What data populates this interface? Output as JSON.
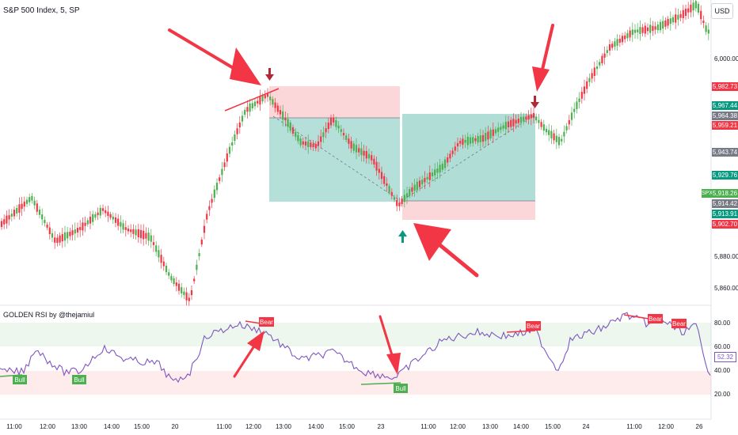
{
  "header": {
    "symbol": "S&P 500 Index, 5, SP",
    "currency_button": "USD"
  },
  "indicator": {
    "title": "GOLDEN RSI by @thejamiul"
  },
  "price_axis": {
    "labels": [
      "6,000.00",
      "5,880.00",
      "5,860.00"
    ],
    "tags": [
      {
        "text": "5,982.73",
        "color": "#f23645"
      },
      {
        "text": "5,967.44",
        "color": "#089981"
      },
      {
        "text": "5,964.38",
        "color": "#787b86"
      },
      {
        "text": "5,959.21",
        "color": "#f23645"
      },
      {
        "text": "5,943.74",
        "color": "#787b86"
      },
      {
        "text": "5,929.76",
        "color": "#089981"
      },
      {
        "text": "5,918.26",
        "color": "#4caf50"
      },
      {
        "text": "5,914.42",
        "color": "#787b86"
      },
      {
        "text": "5,913.91",
        "color": "#089981"
      },
      {
        "text": "5,902.70",
        "color": "#f23645"
      }
    ],
    "symbol_tag": "SPX"
  },
  "rsi_axis": {
    "labels": [
      "80.00",
      "60.00",
      "40.00",
      "20.00"
    ],
    "current": "52.32"
  },
  "time_axis": {
    "labels": [
      "11:00",
      "12:00",
      "13:00",
      "14:00",
      "15:00",
      "20",
      "11:00",
      "12:00",
      "13:00",
      "14:00",
      "15:00",
      "23",
      "11:00",
      "12:00",
      "13:00",
      "14:00",
      "15:00",
      "24",
      "11:00",
      "12:00",
      "26"
    ]
  },
  "signals": {
    "bull": [
      "Bull",
      "Bull",
      "Bull"
    ],
    "bear": [
      "Bear",
      "Bear",
      "Bear",
      "Bear"
    ]
  },
  "colors": {
    "up": "#4caf50",
    "down": "#f23645",
    "rsi": "#7e57c2",
    "annotation": "#f23645",
    "teal": "#089981"
  }
}
